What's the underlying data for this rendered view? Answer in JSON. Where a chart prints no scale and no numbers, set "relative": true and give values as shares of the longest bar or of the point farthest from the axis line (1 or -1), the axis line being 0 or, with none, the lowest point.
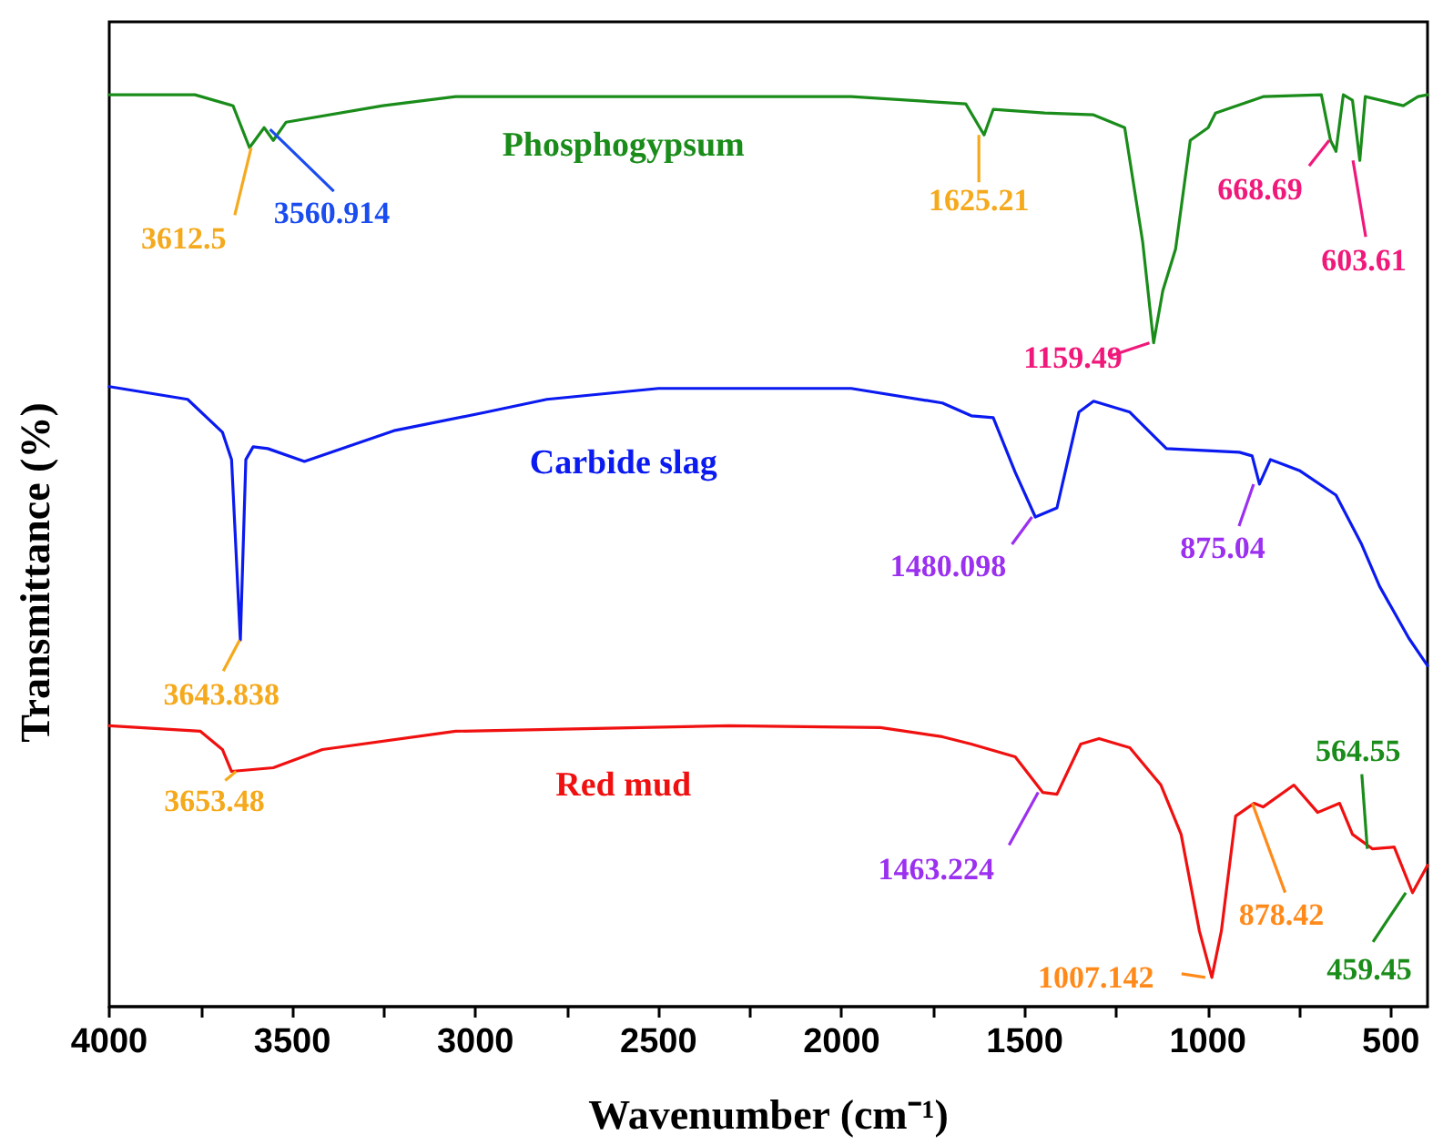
{
  "chart_data": {
    "type": "line",
    "relative": true,
    "xlabel": "Wavenumber (cm⁻¹)",
    "ylabel": "Transmittance (%)",
    "marker": "none",
    "line_style": "solid",
    "xlim": [
      4000,
      400
    ],
    "xticks": [
      4000,
      {
        "value": 3750,
        "label": null
      },
      3500,
      {
        "value": 3250,
        "label": null
      },
      3000,
      {
        "value": 2750,
        "label": null
      },
      2500,
      {
        "value": 2250,
        "label": null
      },
      2000,
      {
        "value": 1750,
        "label": null
      },
      1500,
      {
        "value": 1250,
        "label": null
      },
      1000,
      {
        "value": 750,
        "label": null
      },
      500
    ],
    "tick_labels": "x",
    "series": [
      {
        "name": "Phosphogypsum",
        "color": "#1a8c1a",
        "x": [
          4000,
          3766,
          3662,
          3617,
          3577,
          3552,
          3517,
          3253,
          3054,
          2500,
          1974,
          1661,
          1611,
          1586,
          1446,
          1312,
          1227,
          1178,
          1148,
          1123,
          1088,
          1048,
          999,
          979,
          849,
          690,
          665,
          650,
          630,
          605,
          585,
          570,
          466,
          426,
          400
        ],
        "values": [
          1.0,
          1.0,
          0.988,
          0.942,
          0.964,
          0.95,
          0.97,
          0.988,
          0.998,
          0.998,
          0.998,
          0.99,
          0.956,
          0.984,
          0.98,
          0.978,
          0.964,
          0.839,
          0.728,
          0.785,
          0.831,
          0.95,
          0.964,
          0.98,
          0.998,
          1.0,
          0.95,
          0.938,
          1.0,
          0.994,
          0.928,
          0.998,
          0.988,
          0.998,
          1.0
        ]
      },
      {
        "name": "Carbide slag",
        "color": "#0a1af0",
        "x": [
          4000,
          3786,
          3691,
          3666,
          3642,
          3627,
          3607,
          3567,
          3467,
          3219,
          2970,
          2805,
          2500,
          1974,
          1725,
          1646,
          1586,
          1526,
          1471,
          1412,
          1352,
          1312,
          1213,
          1113,
          1013,
          914,
          879,
          859,
          829,
          750,
          650,
          580,
          531,
          451,
          400
        ],
        "values": [
          0.68,
          0.666,
          0.63,
          0.6,
          0.402,
          0.6,
          0.614,
          0.612,
          0.598,
          0.632,
          0.652,
          0.666,
          0.678,
          0.678,
          0.662,
          0.648,
          0.646,
          0.586,
          0.537,
          0.547,
          0.652,
          0.664,
          0.652,
          0.612,
          0.61,
          0.608,
          0.604,
          0.573,
          0.6,
          0.588,
          0.561,
          0.507,
          0.461,
          0.404,
          0.374
        ]
      },
      {
        "name": "Red mud",
        "color": "#f01010",
        "x": [
          4000,
          3751,
          3691,
          3666,
          3552,
          3418,
          3054,
          2308,
          1894,
          1725,
          1646,
          1526,
          1451,
          1412,
          1347,
          1297,
          1213,
          1128,
          1073,
          1023,
          989,
          963,
          924,
          874,
          849,
          765,
          700,
          640,
          605,
          550,
          491,
          441,
          400
        ],
        "values": [
          0.308,
          0.302,
          0.282,
          0.258,
          0.262,
          0.282,
          0.302,
          0.308,
          0.306,
          0.296,
          0.288,
          0.274,
          0.235,
          0.233,
          0.288,
          0.294,
          0.284,
          0.243,
          0.189,
          0.083,
          0.032,
          0.083,
          0.209,
          0.223,
          0.219,
          0.243,
          0.213,
          0.223,
          0.189,
          0.173,
          0.175,
          0.125,
          0.155
        ]
      }
    ],
    "annotations": [
      {
        "text": "3612.5",
        "x": 3612.5,
        "y": 0.942
      },
      {
        "text": "3560.914",
        "x": 3560.914,
        "y": 0.962
      },
      {
        "text": "1625.21",
        "x": 1625.21,
        "y": 0.956
      },
      {
        "text": "1159.49",
        "x": 1159.49,
        "y": 0.728
      },
      {
        "text": "668.69",
        "x": 668.69,
        "y": 0.95
      },
      {
        "text": "603.61",
        "x": 603.61,
        "y": 0.928
      },
      {
        "text": "3643.838",
        "x": 3643.838,
        "y": 0.402
      },
      {
        "text": "1480.098",
        "x": 1480.098,
        "y": 0.537
      },
      {
        "text": "875.04",
        "x": 875.04,
        "y": 0.573
      },
      {
        "text": "3653.48",
        "x": 3653.48,
        "y": 0.258
      },
      {
        "text": "1463.224",
        "x": 1463.224,
        "y": 0.235
      },
      {
        "text": "1007.142",
        "x": 1007.142,
        "y": 0.032
      },
      {
        "text": "878.42",
        "x": 878.42,
        "y": 0.223
      },
      {
        "text": "564.55",
        "x": 564.55,
        "y": 0.173
      },
      {
        "text": "459.45",
        "x": 459.45,
        "y": 0.125
      }
    ]
  }
}
